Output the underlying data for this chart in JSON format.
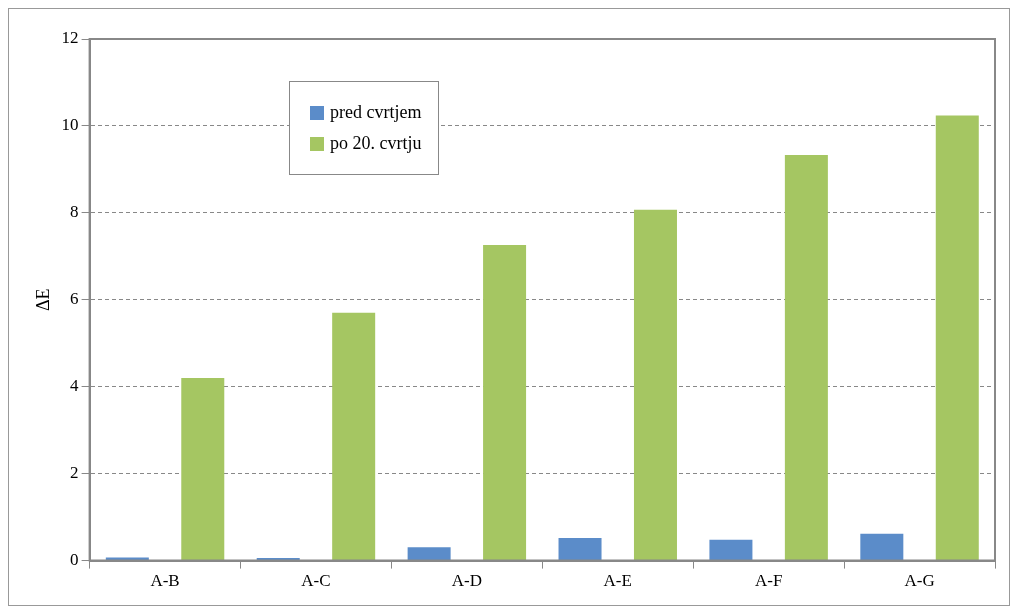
{
  "chart_data": {
    "type": "bar",
    "ylabel": "ΔE",
    "categories": [
      "A-B",
      "A-C",
      "A-D",
      "A-E",
      "A-F",
      "A-G"
    ],
    "series": [
      {
        "name": "pred cvrtjem",
        "color": "#5b8cc9",
        "values": [
          0.07,
          0.06,
          0.31,
          0.52,
          0.48,
          0.62
        ]
      },
      {
        "name": "po 20. cvrtju",
        "color": "#a5c662",
        "values": [
          4.2,
          5.7,
          7.26,
          8.07,
          9.33,
          10.24
        ]
      }
    ],
    "ylim": [
      0,
      12
    ],
    "yticks": [
      0,
      2,
      4,
      6,
      8,
      10,
      12
    ],
    "grid": "y",
    "legend": "top left"
  }
}
